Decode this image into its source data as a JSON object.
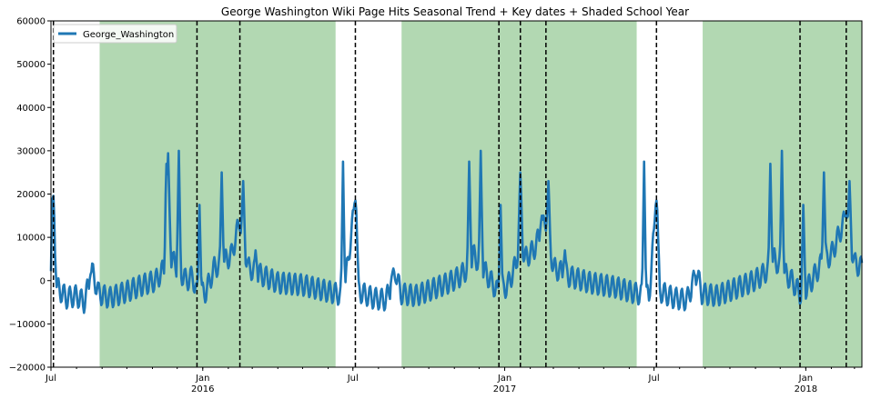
{
  "chart_data": {
    "type": "line",
    "title": "George Washington Wiki Page Hits Seasonal Trend + Key dates + Shaded School Year",
    "xlabel": "",
    "ylabel": "",
    "xlim": [
      "2015-07-01",
      "2018-03-10"
    ],
    "ylim": [
      -20000,
      60000
    ],
    "grid": false,
    "legend_position": "top-left",
    "y_ticks": [
      -20000,
      -10000,
      0,
      10000,
      20000,
      30000,
      40000,
      50000,
      60000
    ],
    "y_tick_labels": [
      "−20000",
      "−10000",
      "0",
      "10000",
      "20000",
      "30000",
      "40000",
      "50000",
      "60000"
    ],
    "x_ticks": [
      {
        "date": "2015-07-01",
        "label": "Jul",
        "year_label": ""
      },
      {
        "date": "2016-01-01",
        "label": "Jan",
        "year_label": "2016"
      },
      {
        "date": "2016-07-01",
        "label": "Jul",
        "year_label": ""
      },
      {
        "date": "2017-01-01",
        "label": "Jan",
        "year_label": "2017"
      },
      {
        "date": "2017-07-01",
        "label": "Jul",
        "year_label": ""
      },
      {
        "date": "2018-01-01",
        "label": "Jan",
        "year_label": "2018"
      }
    ],
    "shaded_regions": [
      {
        "start": "2015-08-29",
        "end": "2016-06-10"
      },
      {
        "start": "2016-08-29",
        "end": "2017-06-10"
      },
      {
        "start": "2017-08-29",
        "end": "2018-03-10"
      }
    ],
    "key_dates": [
      "2015-07-04",
      "2015-12-25",
      "2016-02-15",
      "2016-07-04",
      "2016-12-25",
      "2017-01-20",
      "2017-02-20",
      "2017-07-04",
      "2017-12-25",
      "2018-02-19"
    ],
    "series": [
      {
        "name": "George_Washington",
        "color": "#1f77b4",
        "base_points": [
          [
            "2015-07-01",
            -2000
          ],
          [
            "2015-07-04",
            18500
          ],
          [
            "2015-07-08",
            -1500
          ],
          [
            "2015-07-20",
            -4000
          ],
          [
            "2015-08-01",
            -3500
          ],
          [
            "2015-08-10",
            -5000
          ],
          [
            "2015-08-20",
            2000
          ],
          [
            "2015-08-28",
            -3000
          ],
          [
            "2015-09-10",
            -4000
          ],
          [
            "2015-10-01",
            -2500
          ],
          [
            "2015-10-20",
            -1000
          ],
          [
            "2015-11-05",
            0
          ],
          [
            "2015-11-16",
            3000
          ],
          [
            "2015-11-20",
            27000
          ],
          [
            "2015-11-24",
            5000
          ],
          [
            "2015-12-05",
            2000
          ],
          [
            "2015-12-12",
            0
          ],
          [
            "2015-12-20",
            1000
          ],
          [
            "2015-12-25",
            -3500
          ],
          [
            "2016-01-05",
            -2500
          ],
          [
            "2016-01-15",
            3000
          ],
          [
            "2016-01-25",
            4000
          ],
          [
            "2016-02-05",
            6000
          ],
          [
            "2016-02-15",
            14000
          ],
          [
            "2016-02-25",
            3000
          ],
          [
            "2016-03-10",
            1500
          ],
          [
            "2016-04-01",
            -500
          ],
          [
            "2016-05-01",
            -1000
          ],
          [
            "2016-06-01",
            -2500
          ],
          [
            "2016-06-20",
            -3500
          ],
          [
            "2016-07-04",
            18500
          ],
          [
            "2016-07-08",
            -2500
          ],
          [
            "2016-07-25",
            -4000
          ],
          [
            "2016-08-10",
            -4500
          ],
          [
            "2016-08-22",
            2000
          ],
          [
            "2016-08-28",
            -3000
          ],
          [
            "2016-09-15",
            -3500
          ],
          [
            "2016-10-05",
            -2000
          ],
          [
            "2016-10-25",
            -500
          ],
          [
            "2016-11-08",
            1000
          ],
          [
            "2016-11-18",
            3000
          ],
          [
            "2016-11-24",
            6000
          ],
          [
            "2016-12-05",
            3000
          ],
          [
            "2016-12-15",
            0
          ],
          [
            "2016-12-25",
            -3000
          ],
          [
            "2017-01-05",
            -1000
          ],
          [
            "2017-01-15",
            4000
          ],
          [
            "2017-01-20",
            12000
          ],
          [
            "2017-01-25",
            5000
          ],
          [
            "2017-02-05",
            7000
          ],
          [
            "2017-02-20",
            14000
          ],
          [
            "2017-03-01",
            3000
          ],
          [
            "2017-03-20",
            1000
          ],
          [
            "2017-04-15",
            -500
          ],
          [
            "2017-05-15",
            -1500
          ],
          [
            "2017-06-10",
            -3000
          ],
          [
            "2017-06-25",
            -3500
          ],
          [
            "2017-07-04",
            18000
          ],
          [
            "2017-07-08",
            -2500
          ],
          [
            "2017-07-25",
            -4000
          ],
          [
            "2017-08-10",
            -4500
          ],
          [
            "2017-08-22",
            2000
          ],
          [
            "2017-08-28",
            -3000
          ],
          [
            "2017-09-15",
            -3500
          ],
          [
            "2017-10-05",
            -2000
          ],
          [
            "2017-10-25",
            -500
          ],
          [
            "2017-11-08",
            1000
          ],
          [
            "2017-11-18",
            3000
          ],
          [
            "2017-11-24",
            5000
          ],
          [
            "2017-12-05",
            2000
          ],
          [
            "2017-12-15",
            0
          ],
          [
            "2017-12-25",
            -3000
          ],
          [
            "2018-01-05",
            -1000
          ],
          [
            "2018-01-20",
            4000
          ],
          [
            "2018-02-01",
            6000
          ],
          [
            "2018-02-19",
            15000
          ],
          [
            "2018-03-01",
            4000
          ],
          [
            "2018-03-10",
            3000
          ]
        ],
        "spikes": [
          [
            "2015-07-03",
            19000
          ],
          [
            "2015-08-19",
            2000
          ],
          [
            "2015-11-18",
            27000
          ],
          [
            "2015-12-03",
            30000
          ],
          [
            "2015-12-28",
            17500
          ],
          [
            "2016-01-24",
            25000
          ],
          [
            "2016-02-19",
            23000
          ],
          [
            "2016-03-05",
            7000
          ],
          [
            "2016-06-19",
            27500
          ],
          [
            "2016-07-04",
            18500
          ],
          [
            "2016-08-18",
            2000
          ],
          [
            "2016-11-19",
            27500
          ],
          [
            "2016-12-03",
            30000
          ],
          [
            "2016-12-27",
            17500
          ],
          [
            "2017-01-20",
            25000
          ],
          [
            "2017-02-15",
            15000
          ],
          [
            "2017-02-23",
            23000
          ],
          [
            "2017-03-15",
            7000
          ],
          [
            "2017-06-19",
            27500
          ],
          [
            "2017-07-04",
            18500
          ],
          [
            "2017-08-18",
            2000
          ],
          [
            "2017-11-19",
            27000
          ],
          [
            "2017-12-03",
            30000
          ],
          [
            "2017-12-29",
            17500
          ],
          [
            "2018-01-23",
            25000
          ],
          [
            "2018-02-19",
            15000
          ],
          [
            "2018-02-23",
            23000
          ]
        ],
        "weekly_amplitude": 2500
      }
    ]
  }
}
